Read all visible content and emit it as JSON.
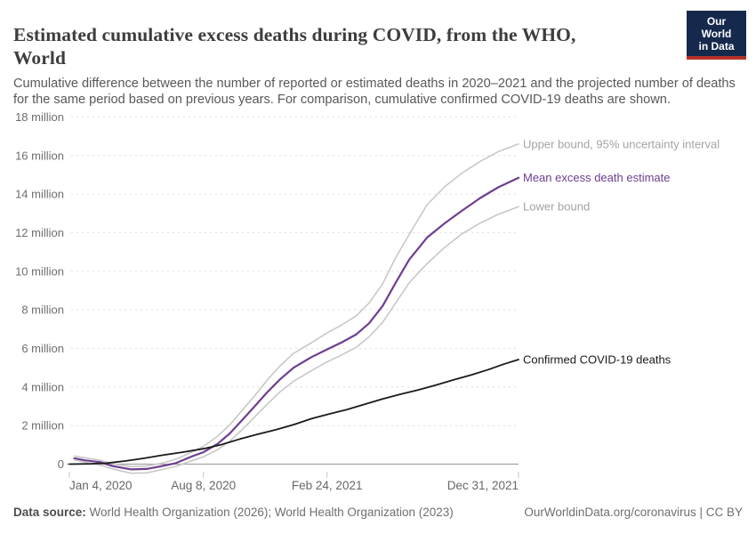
{
  "header": {
    "title_lines": [
      "Estimated cumulative excess deaths during COVID, from the WHO,",
      "World"
    ],
    "subtitle": "Cumulative difference between the number of reported or estimated deaths in 2020–2021 and the projected number of deaths for the same period based on previous years. For comparison, cumulative confirmed COVID-19 deaths are shown.",
    "logo": {
      "line1": "Our World",
      "line2": "in Data",
      "bg_color": "#15294d",
      "accent_color": "#b5332a"
    }
  },
  "chart_data": {
    "type": "line",
    "title": "Estimated cumulative excess deaths during COVID, from the WHO, World",
    "x_axis": {
      "unit": "date",
      "range_days": [
        0,
        727
      ],
      "ticks": [
        {
          "day": 0,
          "label": "Jan 4, 2020",
          "align": "start"
        },
        {
          "day": 217,
          "label": "Aug 8, 2020",
          "align": "middle"
        },
        {
          "day": 417,
          "label": "Feb 24, 2021",
          "align": "middle"
        },
        {
          "day": 727,
          "label": "Dec 31, 2021",
          "align": "end"
        }
      ]
    },
    "y_axis": {
      "unit": "million deaths",
      "range": [
        0,
        18
      ],
      "grid": "dashed",
      "ticks": [
        {
          "value": 0,
          "label": "0"
        },
        {
          "value": 2,
          "label": "2 million"
        },
        {
          "value": 4,
          "label": "4 million"
        },
        {
          "value": 6,
          "label": "6 million"
        },
        {
          "value": 8,
          "label": "8 million"
        },
        {
          "value": 10,
          "label": "10 million"
        },
        {
          "value": 12,
          "label": "12 million"
        },
        {
          "value": 14,
          "label": "14 million"
        },
        {
          "value": 16,
          "label": "16 million"
        },
        {
          "value": 18,
          "label": "18 million"
        }
      ]
    },
    "legend_position": "end-of-line labels, right side",
    "series": [
      {
        "id": "upper-bound",
        "name": "Upper bound, 95% uncertainty interval",
        "color": "#c8c8c8",
        "label_color": "#a3a3a3",
        "width": 1.6,
        "points": [
          [
            8,
            0.42
          ],
          [
            25,
            0.33
          ],
          [
            50,
            0.2
          ],
          [
            70,
            0.02
          ],
          [
            100,
            -0.13
          ],
          [
            125,
            -0.1
          ],
          [
            150,
            0.05
          ],
          [
            172,
            0.25
          ],
          [
            200,
            0.65
          ],
          [
            217,
            0.92
          ],
          [
            240,
            1.45
          ],
          [
            260,
            2.05
          ],
          [
            280,
            2.8
          ],
          [
            300,
            3.55
          ],
          [
            320,
            4.35
          ],
          [
            341,
            5.1
          ],
          [
            363,
            5.75
          ],
          [
            392,
            6.3
          ],
          [
            417,
            6.8
          ],
          [
            440,
            7.2
          ],
          [
            464,
            7.68
          ],
          [
            485,
            8.35
          ],
          [
            507,
            9.35
          ],
          [
            528,
            10.7
          ],
          [
            550,
            11.9
          ],
          [
            579,
            13.45
          ],
          [
            608,
            14.4
          ],
          [
            636,
            15.1
          ],
          [
            665,
            15.7
          ],
          [
            694,
            16.2
          ],
          [
            727,
            16.6
          ]
        ]
      },
      {
        "id": "mean-excess",
        "name": "Mean excess death estimate",
        "color": "#6d3e91",
        "label_color": "#6d3e91",
        "width": 2.2,
        "points": [
          [
            8,
            0.3
          ],
          [
            25,
            0.2
          ],
          [
            50,
            0.1
          ],
          [
            70,
            -0.1
          ],
          [
            100,
            -0.27
          ],
          [
            125,
            -0.25
          ],
          [
            150,
            -0.1
          ],
          [
            172,
            0.05
          ],
          [
            200,
            0.42
          ],
          [
            217,
            0.62
          ],
          [
            240,
            1.05
          ],
          [
            260,
            1.6
          ],
          [
            280,
            2.3
          ],
          [
            300,
            3.0
          ],
          [
            320,
            3.72
          ],
          [
            341,
            4.4
          ],
          [
            363,
            5.0
          ],
          [
            392,
            5.55
          ],
          [
            417,
            5.95
          ],
          [
            440,
            6.3
          ],
          [
            464,
            6.72
          ],
          [
            485,
            7.3
          ],
          [
            507,
            8.2
          ],
          [
            528,
            9.4
          ],
          [
            550,
            10.6
          ],
          [
            579,
            11.75
          ],
          [
            608,
            12.5
          ],
          [
            636,
            13.15
          ],
          [
            665,
            13.8
          ],
          [
            694,
            14.35
          ],
          [
            727,
            14.85
          ]
        ]
      },
      {
        "id": "lower-bound",
        "name": "Lower bound",
        "color": "#c8c8c8",
        "label_color": "#a3a3a3",
        "width": 1.6,
        "points": [
          [
            8,
            0.22
          ],
          [
            25,
            0.1
          ],
          [
            50,
            -0.05
          ],
          [
            70,
            -0.25
          ],
          [
            100,
            -0.47
          ],
          [
            125,
            -0.45
          ],
          [
            150,
            -0.28
          ],
          [
            172,
            -0.12
          ],
          [
            200,
            0.2
          ],
          [
            217,
            0.38
          ],
          [
            240,
            0.75
          ],
          [
            260,
            1.2
          ],
          [
            280,
            1.8
          ],
          [
            300,
            2.45
          ],
          [
            320,
            3.1
          ],
          [
            341,
            3.75
          ],
          [
            363,
            4.3
          ],
          [
            392,
            4.85
          ],
          [
            417,
            5.3
          ],
          [
            440,
            5.65
          ],
          [
            464,
            6.05
          ],
          [
            485,
            6.6
          ],
          [
            507,
            7.35
          ],
          [
            528,
            8.35
          ],
          [
            550,
            9.4
          ],
          [
            579,
            10.4
          ],
          [
            608,
            11.25
          ],
          [
            636,
            11.95
          ],
          [
            665,
            12.5
          ],
          [
            694,
            12.95
          ],
          [
            727,
            13.35
          ]
        ]
      },
      {
        "id": "confirmed",
        "name": "Confirmed COVID-19 deaths",
        "color": "#1a1a1a",
        "label_color": "#1a1a1a",
        "width": 1.8,
        "points": [
          [
            0,
            0.0
          ],
          [
            35,
            0.02
          ],
          [
            60,
            0.05
          ],
          [
            90,
            0.16
          ],
          [
            120,
            0.3
          ],
          [
            150,
            0.46
          ],
          [
            183,
            0.62
          ],
          [
            217,
            0.8
          ],
          [
            245,
            1.0
          ],
          [
            276,
            1.3
          ],
          [
            305,
            1.55
          ],
          [
            334,
            1.78
          ],
          [
            363,
            2.05
          ],
          [
            392,
            2.36
          ],
          [
            420,
            2.6
          ],
          [
            449,
            2.83
          ],
          [
            478,
            3.1
          ],
          [
            507,
            3.38
          ],
          [
            535,
            3.62
          ],
          [
            564,
            3.84
          ],
          [
            593,
            4.1
          ],
          [
            622,
            4.37
          ],
          [
            650,
            4.62
          ],
          [
            678,
            4.9
          ],
          [
            703,
            5.18
          ],
          [
            727,
            5.42
          ]
        ]
      }
    ]
  },
  "footer": {
    "source_label": "Data source:",
    "source_text": " World Health Organization (2026); World Health Organization (2023)",
    "credit": "OurWorldinData.org/coronavirus | CC BY"
  },
  "colors": {
    "accent_purple": "#6d3e91",
    "bound_gray_line": "#c8c8c8",
    "bound_gray_label": "#a3a3a3",
    "confirmed_black": "#1a1a1a",
    "grid_gray": "#dedede",
    "axis_text": "#6e6e6e"
  }
}
